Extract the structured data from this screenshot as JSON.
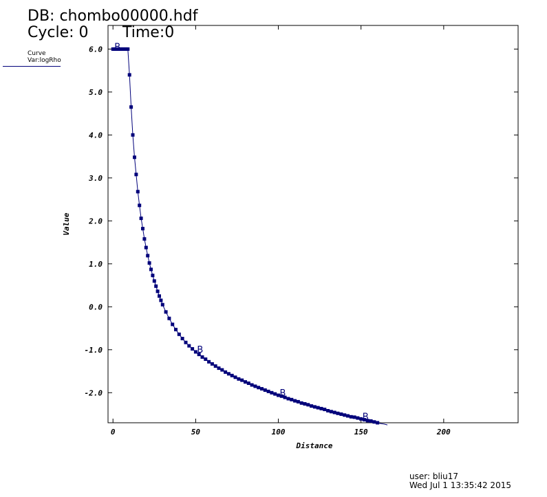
{
  "header": {
    "db_label": "DB:",
    "db_name": "chombo00000.hdf",
    "cycle_label": "Cycle:",
    "cycle_value": "0",
    "time_label": "Time:",
    "time_value": "0"
  },
  "legend": {
    "title": "Curve",
    "var_label": "Var:",
    "var_name": "logRho",
    "line_color": "#00007a"
  },
  "footer": {
    "user_label": "user:",
    "user_name": "bliu17",
    "date": "Wed Jul  1 13:35:42 2015"
  },
  "chart_data": {
    "type": "line",
    "xlabel": "Distance",
    "ylabel": "Value",
    "xlim": [
      -3,
      245
    ],
    "ylim": [
      -2.7,
      6.55
    ],
    "xticks": [
      0,
      50,
      100,
      150,
      200
    ],
    "xtick_labels": [
      "0",
      "50",
      "100",
      "150",
      "200"
    ],
    "yticks": [
      -2.0,
      -1.0,
      0.0,
      1.0,
      2.0,
      3.0,
      4.0,
      5.0,
      6.0
    ],
    "ytick_labels": [
      "-2.0",
      "-1.0",
      "0.0",
      "1.0",
      "2.0",
      "3.0",
      "4.0",
      "5.0",
      "6.0"
    ],
    "color": "#00007a",
    "marker": "square",
    "curve_marker_label": "B",
    "curve_marker_x": [
      0,
      50,
      100,
      150
    ],
    "series": [
      {
        "x": [
          0,
          1,
          2,
          3,
          4,
          5,
          6,
          7,
          8,
          9,
          10,
          11,
          12,
          13,
          14,
          15,
          16,
          17,
          18,
          19,
          20,
          21,
          22,
          23,
          24,
          25,
          26,
          27,
          28,
          29,
          30,
          32,
          34,
          36,
          38,
          40,
          42,
          44,
          46,
          48,
          50,
          52,
          54,
          56,
          58,
          60,
          62,
          64,
          66,
          68,
          70,
          72,
          74,
          76,
          78,
          80,
          82,
          84,
          86,
          88,
          90,
          92,
          94,
          96,
          98,
          100,
          102,
          104,
          106,
          108,
          110,
          112,
          114,
          116,
          118,
          120,
          122,
          124,
          126,
          128,
          130,
          132,
          134,
          136,
          138,
          140,
          142,
          144,
          146,
          148,
          150,
          152,
          154,
          156,
          158,
          160,
          162,
          164,
          166
        ],
        "y": [
          6.0,
          6.0,
          6.0,
          6.0,
          6.0,
          6.0,
          6.0,
          6.0,
          6.0,
          6.0,
          5.4,
          4.65,
          4.0,
          3.48,
          3.08,
          2.68,
          2.36,
          2.06,
          1.82,
          1.58,
          1.38,
          1.19,
          1.02,
          0.87,
          0.73,
          0.6,
          0.48,
          0.36,
          0.25,
          0.15,
          0.05,
          -0.12,
          -0.27,
          -0.41,
          -0.53,
          -0.64,
          -0.74,
          -0.83,
          -0.91,
          -0.98,
          -1.05,
          -1.11,
          -1.17,
          -1.22,
          -1.28,
          -1.33,
          -1.38,
          -1.43,
          -1.47,
          -1.52,
          -1.56,
          -1.6,
          -1.64,
          -1.68,
          -1.71,
          -1.75,
          -1.78,
          -1.82,
          -1.85,
          -1.88,
          -1.91,
          -1.94,
          -1.97,
          -2.0,
          -2.03,
          -2.06,
          -2.08,
          -2.11,
          -2.14,
          -2.16,
          -2.19,
          -2.21,
          -2.24,
          -2.26,
          -2.28,
          -2.31,
          -2.33,
          -2.35,
          -2.37,
          -2.39,
          -2.42,
          -2.44,
          -2.46,
          -2.48,
          -2.5,
          -2.52,
          -2.54,
          -2.56,
          -2.57,
          -2.59,
          -2.61,
          -2.63,
          -2.65,
          -2.66,
          -2.68,
          -2.7,
          -2.72,
          -2.73,
          -2.75
        ]
      }
    ]
  }
}
